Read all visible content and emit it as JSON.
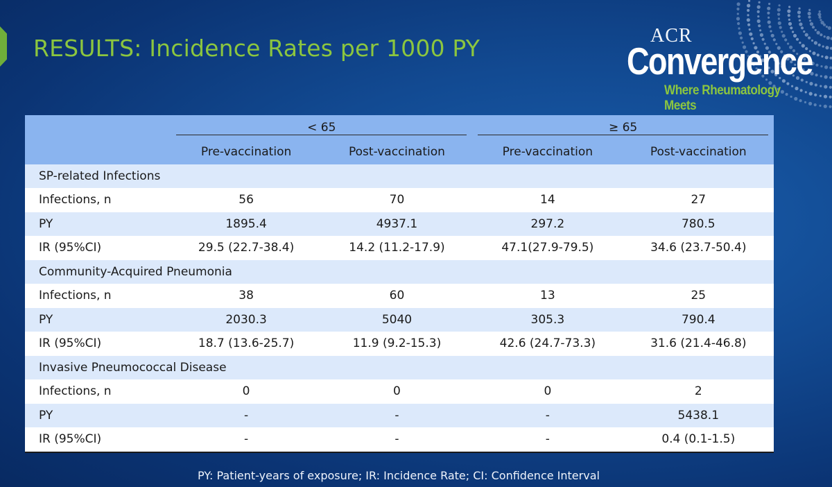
{
  "slide": {
    "title": "RESULTS: Incidence Rates per 1000 PY",
    "logo": {
      "acr": "ACR",
      "name": "Convergence",
      "tagline": "Where Rheumatology Meets"
    },
    "footnote": "PY: Patient-years of exposure; IR: Incidence Rate; CI: Confidence Interval",
    "colors": {
      "title": "#8cc63f",
      "header_bg": "#8ab4ef",
      "band_bg": "#dce9fb",
      "background": "#124a92"
    }
  },
  "table": {
    "groups": [
      "< 65",
      "≥ 65"
    ],
    "columns": [
      "Pre-vaccination",
      "Post-vaccination",
      "Pre-vaccination",
      "Post-vaccination"
    ],
    "sections": [
      {
        "title": "SP-related Infections",
        "rows": [
          {
            "label": "Infections, n",
            "values": [
              "56",
              "70",
              "14",
              "27"
            ]
          },
          {
            "label": "PY",
            "values": [
              "1895.4",
              "4937.1",
              "297.2",
              "780.5"
            ]
          },
          {
            "label": "IR (95%CI)",
            "values": [
              "29.5 (22.7-38.4)",
              "14.2 (11.2-17.9)",
              "47.1(27.9-79.5)",
              "34.6 (23.7-50.4)"
            ]
          }
        ]
      },
      {
        "title": "Community-Acquired Pneumonia",
        "rows": [
          {
            "label": "Infections, n",
            "values": [
              "38",
              "60",
              "13",
              "25"
            ]
          },
          {
            "label": "PY",
            "values": [
              "2030.3",
              "5040",
              "305.3",
              "790.4"
            ]
          },
          {
            "label": "IR (95%CI)",
            "values": [
              "18.7 (13.6-25.7)",
              "11.9 (9.2-15.3)",
              "42.6 (24.7-73.3)",
              "31.6 (21.4-46.8)"
            ]
          }
        ]
      },
      {
        "title": "Invasive Pneumococcal Disease",
        "rows": [
          {
            "label": "Infections, n",
            "values": [
              "0",
              "0",
              "0",
              "2"
            ]
          },
          {
            "label": "PY",
            "values": [
              "-",
              "-",
              "-",
              "5438.1"
            ]
          },
          {
            "label": "IR (95%CI)",
            "values": [
              "-",
              "-",
              "-",
              "0.4 (0.1-1.5)"
            ]
          }
        ]
      }
    ]
  }
}
